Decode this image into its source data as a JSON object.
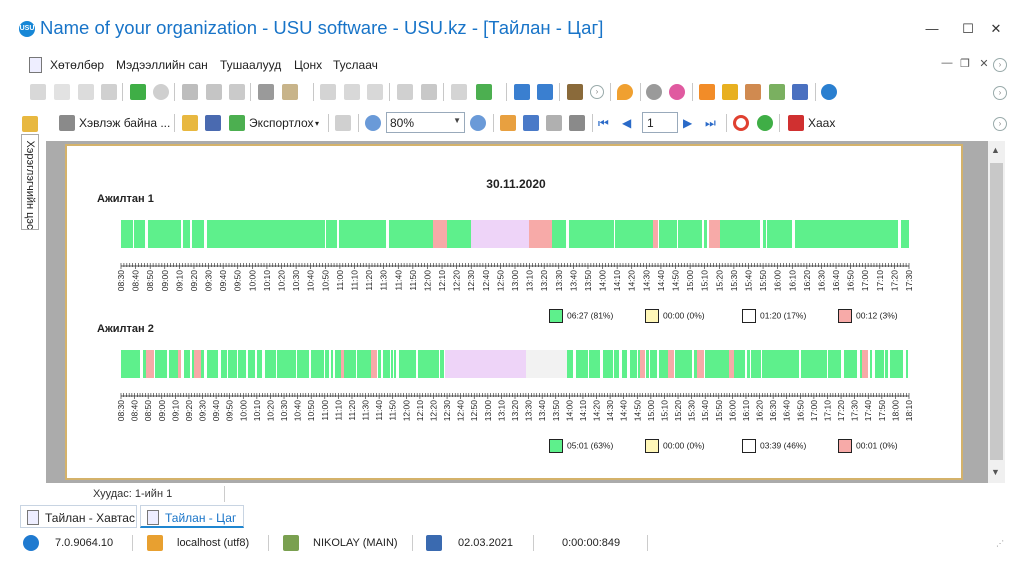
{
  "window": {
    "title": "Name of your organization - USU software - USU.kz - [Тайлан - Цаг]",
    "app_icon_text": "USU",
    "minimize": "—",
    "maximize": "☐",
    "close": "✕"
  },
  "menu": {
    "items": [
      "Хөтөлбөр",
      "Мэдээллийн сан",
      "Тушаалууд",
      "Цонх",
      "Туслаач"
    ]
  },
  "toolbar2": {
    "print_label": "Хэвлэж байна ...",
    "export_label": "Экспортлох",
    "zoom_value": "80%",
    "page_value": "1",
    "close_label": "Хаах"
  },
  "left_panel": {
    "tab_label": "Хэрэглэгчийн цэс"
  },
  "report": {
    "date": "30.11.2020",
    "employees": [
      {
        "name": "Ажилтан 1",
        "ticks": [
          "08:30",
          "08:40",
          "08:50",
          "09:00",
          "09:10",
          "09:20",
          "09:30",
          "09:40",
          "09:50",
          "10:00",
          "10:10",
          "10:20",
          "10:30",
          "10:40",
          "10:50",
          "11:00",
          "11:10",
          "11:20",
          "11:30",
          "11:40",
          "11:50",
          "12:00",
          "12:10",
          "12:20",
          "12:30",
          "12:40",
          "12:50",
          "13:00",
          "13:10",
          "13:20",
          "13:30",
          "13:40",
          "13:50",
          "14:00",
          "14:10",
          "14:20",
          "14:30",
          "14:40",
          "14:50",
          "15:00",
          "15:10",
          "15:20",
          "15:30",
          "15:40",
          "15:50",
          "16:00",
          "16:10",
          "16:20",
          "16:30",
          "16:40",
          "16:50",
          "17:00",
          "17:10",
          "17:20",
          "17:30"
        ],
        "legend": [
          {
            "color": "#5ef08c",
            "text": "06:27 (81%)"
          },
          {
            "color": "#fff7b8",
            "text": "00:00 (0%)"
          },
          {
            "color": "#ffffff",
            "text": "01:20 (17%)"
          },
          {
            "color": "#f7aaa8",
            "text": "00:12 (3%)"
          }
        ]
      },
      {
        "name": "Ажилтан 2",
        "ticks": [
          "08:30",
          "08:40",
          "08:50",
          "09:00",
          "09:10",
          "09:20",
          "09:30",
          "09:40",
          "09:50",
          "10:00",
          "10:10",
          "10:20",
          "10:30",
          "10:40",
          "10:50",
          "11:00",
          "11:10",
          "11:20",
          "11:30",
          "11:40",
          "11:50",
          "12:00",
          "12:10",
          "12:20",
          "12:30",
          "12:40",
          "12:50",
          "13:00",
          "13:10",
          "13:20",
          "13:30",
          "13:40",
          "13:50",
          "14:00",
          "14:10",
          "14:20",
          "14:30",
          "14:40",
          "14:50",
          "15:00",
          "15:10",
          "15:20",
          "15:30",
          "15:40",
          "15:50",
          "16:00",
          "16:10",
          "16:20",
          "16:30",
          "16:40",
          "16:50",
          "17:00",
          "17:10",
          "17:20",
          "17:30",
          "17:40",
          "17:50",
          "18:00",
          "18:10"
        ],
        "legend": [
          {
            "color": "#5ef08c",
            "text": "05:01 (63%)"
          },
          {
            "color": "#fff7b8",
            "text": "00:00 (0%)"
          },
          {
            "color": "#ffffff",
            "text": "03:39 (46%)"
          },
          {
            "color": "#f7aaa8",
            "text": "00:01 (0%)"
          }
        ]
      }
    ],
    "colors": {
      "active": "#5ef08c",
      "idle": "#f7aaa8",
      "break": "#eed4f8",
      "empty": "#f2f2f2"
    }
  },
  "pages": {
    "label": "Хуудас: 1-ийн 1"
  },
  "tabs": [
    {
      "label": "Тайлан - Хавтас",
      "active": false
    },
    {
      "label": "Тайлан - Цаг",
      "active": true
    }
  ],
  "status": {
    "version": "7.0.9064.10",
    "db": "localhost (utf8)",
    "user": "NIKOLAY (MAIN)",
    "date": "02.03.2021",
    "timer": "0:00:00:849"
  }
}
